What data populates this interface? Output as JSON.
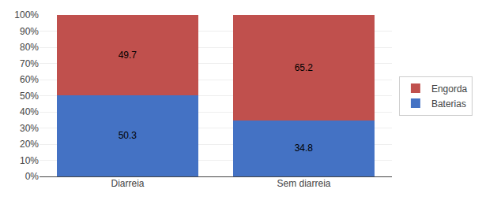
{
  "chart_data": {
    "type": "bar",
    "stacked": true,
    "categories": [
      "Diarreia",
      "Sem diarreia"
    ],
    "series": [
      {
        "name": "Baterias",
        "color": "#4472C4",
        "values": [
          50.3,
          34.8
        ]
      },
      {
        "name": "Engorda",
        "color": "#C0504D",
        "values": [
          49.7,
          65.2
        ]
      }
    ],
    "ylim": [
      0,
      100
    ],
    "yticks": [
      {
        "value": 0,
        "label": "0%"
      },
      {
        "value": 10,
        "label": "10%"
      },
      {
        "value": 20,
        "label": "20%"
      },
      {
        "value": 30,
        "label": "30%"
      },
      {
        "value": 40,
        "label": "40%"
      },
      {
        "value": 50,
        "label": "50%"
      },
      {
        "value": 60,
        "label": "60%"
      },
      {
        "value": 70,
        "label": "70%"
      },
      {
        "value": 80,
        "label": "80%"
      },
      {
        "value": 90,
        "label": "90%"
      },
      {
        "value": 100,
        "label": "100%"
      }
    ],
    "grid": true,
    "legend": "right",
    "data_labels": true
  }
}
